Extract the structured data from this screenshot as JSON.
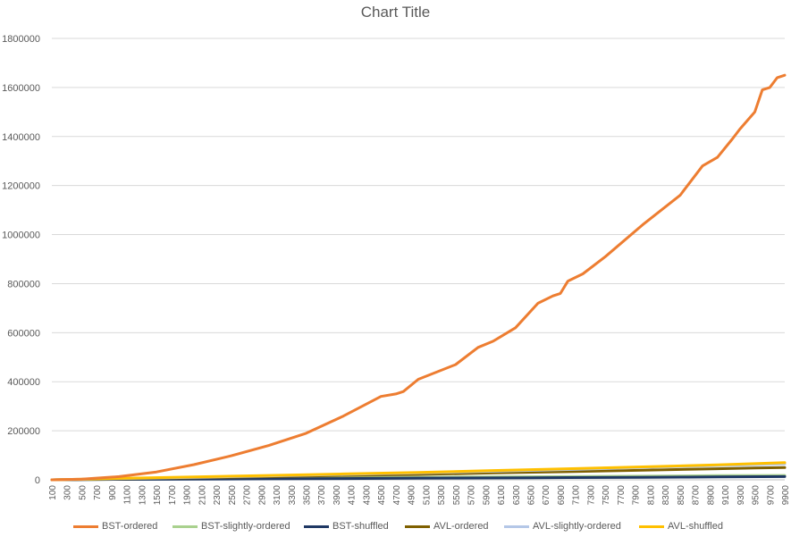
{
  "chart_data": {
    "type": "line",
    "title": "Chart Title",
    "xlabel": "",
    "ylabel": "",
    "ylim": [
      0,
      1800000
    ],
    "yticks": [
      0,
      200000,
      400000,
      600000,
      800000,
      1000000,
      1200000,
      1400000,
      1600000,
      1800000
    ],
    "x_start": 100,
    "x_step": 100,
    "x_end": 9900,
    "x_tick_step": 200,
    "grid": "horizontal",
    "legend_position": "bottom",
    "series": [
      {
        "name": "BST-ordered",
        "color": "#ED7D31",
        "points": [
          [
            100,
            0
          ],
          [
            500,
            3000
          ],
          [
            1000,
            13000
          ],
          [
            1500,
            32000
          ],
          [
            2000,
            62000
          ],
          [
            2500,
            98000
          ],
          [
            3000,
            140000
          ],
          [
            3500,
            190000
          ],
          [
            4000,
            260000
          ],
          [
            4500,
            340000
          ],
          [
            4700,
            350000
          ],
          [
            4800,
            360000
          ],
          [
            5000,
            410000
          ],
          [
            5500,
            470000
          ],
          [
            5800,
            540000
          ],
          [
            6000,
            565000
          ],
          [
            6300,
            620000
          ],
          [
            6600,
            720000
          ],
          [
            6800,
            750000
          ],
          [
            6900,
            760000
          ],
          [
            7000,
            810000
          ],
          [
            7200,
            840000
          ],
          [
            7500,
            910000
          ],
          [
            8000,
            1040000
          ],
          [
            8500,
            1160000
          ],
          [
            8800,
            1280000
          ],
          [
            9000,
            1315000
          ],
          [
            9200,
            1390000
          ],
          [
            9300,
            1430000
          ],
          [
            9500,
            1500000
          ],
          [
            9600,
            1590000
          ],
          [
            9700,
            1600000
          ],
          [
            9800,
            1640000
          ],
          [
            9900,
            1650000
          ]
        ]
      },
      {
        "name": "BST-slightly-ordered",
        "color": "#A9D18E",
        "points": [
          [
            100,
            0
          ],
          [
            1000,
            2000
          ],
          [
            2000,
            4000
          ],
          [
            3000,
            6000
          ],
          [
            4000,
            8000
          ],
          [
            5000,
            10000
          ],
          [
            6000,
            12000
          ],
          [
            7000,
            13000
          ],
          [
            8000,
            15000
          ],
          [
            9000,
            17000
          ],
          [
            9900,
            18000
          ]
        ]
      },
      {
        "name": "BST-shuffled",
        "color": "#1F3864",
        "points": [
          [
            100,
            0
          ],
          [
            1000,
            2000
          ],
          [
            2000,
            3000
          ],
          [
            3000,
            4000
          ],
          [
            4000,
            5000
          ],
          [
            4500,
            6000
          ],
          [
            5000,
            7000
          ],
          [
            6000,
            7500
          ],
          [
            6500,
            8000
          ],
          [
            7000,
            9000
          ],
          [
            8000,
            10000
          ],
          [
            8600,
            11000
          ],
          [
            9000,
            12000
          ],
          [
            9900,
            13000
          ]
        ]
      },
      {
        "name": "AVL-ordered",
        "color": "#7F6000",
        "points": [
          [
            100,
            0
          ],
          [
            1000,
            4000
          ],
          [
            2000,
            8000
          ],
          [
            3000,
            13000
          ],
          [
            4000,
            18000
          ],
          [
            5000,
            22000
          ],
          [
            6000,
            28000
          ],
          [
            7000,
            33000
          ],
          [
            8000,
            39000
          ],
          [
            9000,
            45000
          ],
          [
            9500,
            48000
          ],
          [
            9900,
            50000
          ]
        ]
      },
      {
        "name": "AVL-slightly-ordered",
        "color": "#B4C7E7",
        "points": [
          [
            100,
            0
          ],
          [
            1000,
            5000
          ],
          [
            2000,
            10000
          ],
          [
            3000,
            16000
          ],
          [
            4000,
            22000
          ],
          [
            5000,
            28000
          ],
          [
            6000,
            35000
          ],
          [
            7000,
            42000
          ],
          [
            8000,
            50000
          ],
          [
            9000,
            58000
          ],
          [
            9900,
            65000
          ]
        ]
      },
      {
        "name": "AVL-shuffled",
        "color": "#FFC000",
        "points": [
          [
            100,
            0
          ],
          [
            1000,
            6000
          ],
          [
            2000,
            12000
          ],
          [
            3000,
            18000
          ],
          [
            4000,
            24000
          ],
          [
            5000,
            30000
          ],
          [
            6000,
            38000
          ],
          [
            7000,
            45000
          ],
          [
            8000,
            53000
          ],
          [
            9000,
            61000
          ],
          [
            9500,
            66000
          ],
          [
            9900,
            70000
          ]
        ]
      }
    ]
  }
}
